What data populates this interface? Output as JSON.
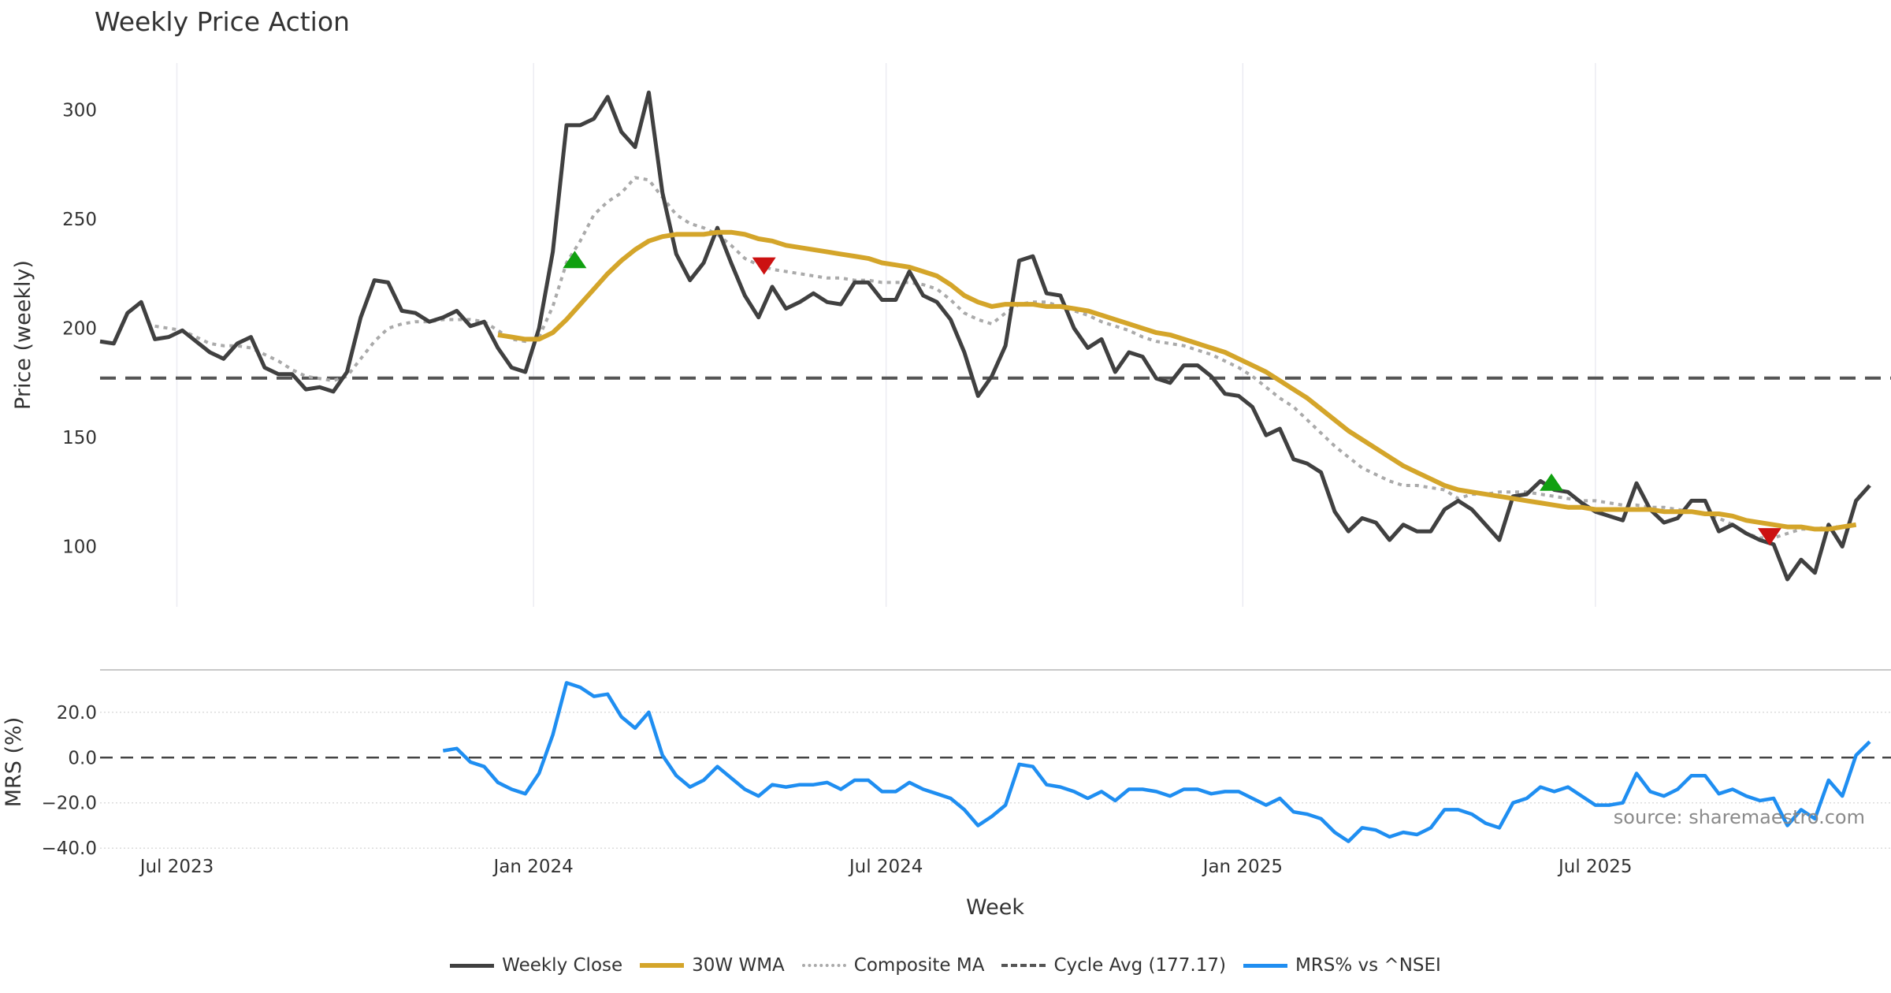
{
  "chart_data": {
    "type": "line",
    "title": "Weekly Price Action",
    "xlabel": "Week",
    "source": "source: sharemaestro.com",
    "colors": {
      "close": "#404040",
      "wma": "#d4a52a",
      "composite": "#aaaaaa",
      "cycle": "#555555",
      "mrs": "#1f8ef1",
      "buy": "#10a010",
      "sell": "#cc1111"
    },
    "x_ticks": [
      {
        "index": 5.6,
        "label": "Jul 2023"
      },
      {
        "index": 31.6,
        "label": "Jan 2024"
      },
      {
        "index": 57.3,
        "label": "Jul 2024"
      },
      {
        "index": 83.3,
        "label": "Jan 2025"
      },
      {
        "index": 109,
        "label": "Jul 2025"
      }
    ],
    "price_panel": {
      "ylabel": "Price (weekly)",
      "ylim": [
        72.4,
        321.5
      ],
      "y_ticks": [
        100,
        150,
        200,
        250,
        300
      ],
      "cycle_avg": 177.17,
      "weekly_close": [
        194,
        193,
        207,
        212,
        195,
        196,
        199,
        194,
        189,
        186,
        193,
        196,
        182,
        179,
        179,
        172,
        173,
        171,
        180,
        205,
        222,
        221,
        208,
        207,
        203,
        205,
        208,
        201,
        203,
        191,
        182,
        180,
        200,
        235,
        293,
        293,
        296,
        306,
        290,
        283,
        308,
        262,
        234,
        222,
        230,
        246,
        230,
        215,
        205,
        219,
        209,
        212,
        216,
        212,
        211,
        221,
        221,
        213,
        213,
        226,
        215,
        212,
        204,
        189,
        169,
        178,
        192,
        231,
        233,
        216,
        215,
        200,
        191,
        195,
        180,
        189,
        187,
        177,
        175,
        183,
        183,
        178,
        170,
        169,
        164,
        151,
        154,
        140,
        138,
        134,
        116,
        107,
        113,
        111,
        103,
        110,
        107,
        107,
        117,
        121,
        117,
        110,
        103,
        123,
        124,
        130,
        126,
        125,
        120,
        116,
        114,
        112,
        129,
        117,
        111,
        113,
        121,
        121,
        107,
        110,
        106,
        103,
        101,
        85,
        94,
        88,
        110,
        100,
        121,
        128
      ],
      "wma_start_index": 29,
      "wma_30w": [
        197,
        196,
        195,
        195,
        198,
        204,
        211,
        218,
        225,
        231,
        236,
        240,
        242,
        243,
        243,
        243,
        244,
        244,
        243,
        241,
        240,
        238,
        237,
        236,
        235,
        234,
        233,
        232,
        230,
        229,
        228,
        226,
        224,
        220,
        215,
        212,
        210,
        211,
        211,
        211,
        210,
        210,
        209,
        208,
        206,
        204,
        202,
        200,
        198,
        197,
        195,
        193,
        191,
        189,
        186,
        183,
        180,
        176,
        172,
        168,
        163,
        158,
        153,
        149,
        145,
        141,
        137,
        134,
        131,
        128,
        126,
        125,
        124,
        123,
        122,
        121,
        120,
        119,
        118,
        118,
        117,
        117,
        117,
        117,
        117,
        116,
        116,
        116,
        115,
        115,
        114,
        112,
        111,
        110,
        109,
        109,
        108,
        108,
        109,
        110
      ],
      "composite_start_index": 4,
      "composite_ma": [
        201,
        200,
        199,
        196,
        193,
        192,
        192,
        191,
        188,
        185,
        181,
        178,
        177,
        176,
        178,
        186,
        194,
        200,
        202,
        203,
        203,
        204,
        204,
        204,
        203,
        199,
        195,
        194,
        196,
        210,
        230,
        240,
        252,
        258,
        262,
        269,
        268,
        260,
        252,
        248,
        246,
        243,
        238,
        232,
        229,
        227,
        226,
        225,
        224,
        223,
        223,
        222,
        222,
        221,
        221,
        221,
        220,
        218,
        213,
        207,
        204,
        202,
        207,
        211,
        212,
        212,
        210,
        208,
        206,
        203,
        201,
        199,
        196,
        194,
        193,
        192,
        190,
        188,
        185,
        182,
        178,
        173,
        168,
        164,
        158,
        152,
        146,
        141,
        136,
        133,
        130,
        128,
        128,
        127,
        126,
        122,
        124,
        124,
        125,
        125,
        125,
        124,
        123,
        122,
        121,
        121,
        120,
        119,
        119,
        118,
        118,
        117,
        116,
        115,
        113,
        110,
        106,
        104,
        104,
        106,
        108,
        108,
        109,
        109,
        110
      ],
      "signals": [
        {
          "type": "buy",
          "index": 34.6,
          "value": 229
        },
        {
          "type": "sell",
          "index": 48.4,
          "value": 231
        },
        {
          "type": "buy",
          "index": 105.8,
          "value": 127
        },
        {
          "type": "sell",
          "index": 121.7,
          "value": 107
        }
      ]
    },
    "mrs_panel": {
      "ylabel": "MRS (%)",
      "ylim": [
        -42.7,
        38.7
      ],
      "y_ticks": [
        20,
        0,
        -20,
        -40
      ],
      "y_tick_labels": [
        "20.0",
        "0.0",
        "−20.0",
        "−40.0"
      ],
      "start_index": 25,
      "values": [
        3,
        4,
        -2,
        -4,
        -11,
        -14,
        -16,
        -7,
        10,
        33,
        31,
        27,
        28,
        18,
        13,
        20,
        1,
        -8,
        -13,
        -10,
        -4,
        -9,
        -14,
        -17,
        -12,
        -13,
        -12,
        -12,
        -11,
        -14,
        -10,
        -10,
        -15,
        -15,
        -11,
        -14,
        -16,
        -18,
        -23,
        -30,
        -26,
        -21,
        -3,
        -4,
        -12,
        -13,
        -15,
        -18,
        -15,
        -19,
        -14,
        -14,
        -15,
        -17,
        -14,
        -14,
        -16,
        -15,
        -15,
        -18,
        -21,
        -18,
        -24,
        -25,
        -27,
        -33,
        -37,
        -31,
        -32,
        -35,
        -33,
        -34,
        -31,
        -23,
        -23,
        -25,
        -29,
        -31,
        -20,
        -18,
        -13,
        -15,
        -13,
        -17,
        -21,
        -21,
        -20,
        -7,
        -15,
        -17,
        -14,
        -8,
        -8,
        -16,
        -14,
        -17,
        -19,
        -18,
        -30,
        -23,
        -27,
        -10,
        -17,
        1,
        7
      ]
    },
    "legend": [
      {
        "key": "close",
        "label": "Weekly Close"
      },
      {
        "key": "wma",
        "label": "30W WMA"
      },
      {
        "key": "composite",
        "label": "Composite MA"
      },
      {
        "key": "cycle",
        "label": "Cycle Avg (177.17)"
      },
      {
        "key": "mrs",
        "label": "MRS% vs ^NSEI"
      }
    ]
  }
}
